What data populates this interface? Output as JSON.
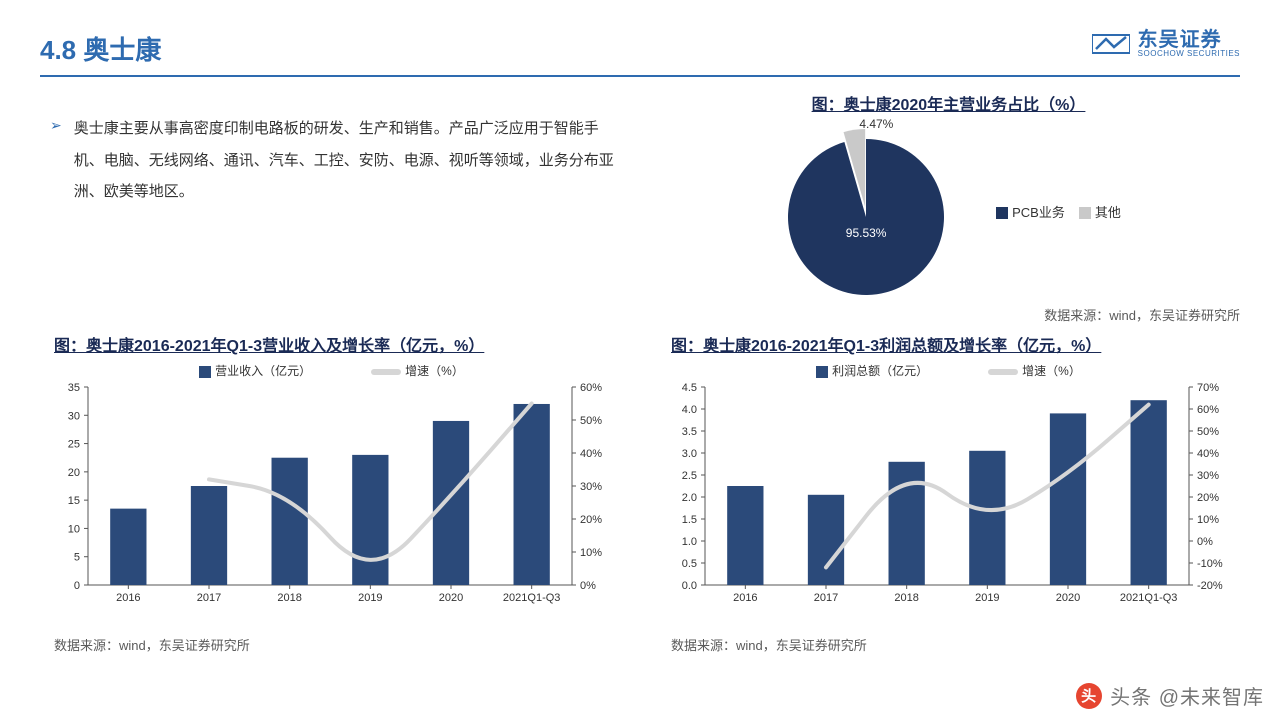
{
  "header": {
    "section_title": "4.8 奥士康",
    "logo_cn": "东吴证券",
    "logo_en": "SOOCHOW SECURITIES"
  },
  "description": {
    "bullet": "➢",
    "text": "奥士康主要从事高密度印制电路板的研发、生产和销售。产品广泛应用于智能手机、电脑、无线网络、通讯、汽车、工控、安防、电源、视听等领域，业务分布亚洲、欧美等地区。"
  },
  "pie_chart": {
    "title": "图：奥士康2020年主营业务占比（%）",
    "type": "pie",
    "slices": [
      {
        "label": "PCB业务",
        "value": 95.53,
        "color": "#1f355f",
        "display": "95.53%"
      },
      {
        "label": "其他",
        "value": 4.47,
        "color": "#c9c9c9",
        "display": "4.47%"
      }
    ],
    "legend_prefix": "■",
    "source": "数据来源：wind，东吴证券研究所"
  },
  "revenue_chart": {
    "title": "图：奥士康2016-2021年Q1-3营业收入及增长率（亿元，%）",
    "type": "bar_line",
    "categories": [
      "2016",
      "2017",
      "2018",
      "2019",
      "2020",
      "2021Q1-Q3"
    ],
    "bar_series_label": "营业收入（亿元）",
    "line_series_label": "增速（%）",
    "bar_values": [
      13.5,
      17.5,
      22.5,
      23.0,
      29.0,
      32.0
    ],
    "line_values": [
      null,
      32,
      28,
      1,
      27,
      55
    ],
    "bar_color": "#2b4a7a",
    "line_color": "#d6d6d6",
    "line_width": 4,
    "bar_width": 0.45,
    "y_left": {
      "min": 0,
      "max": 35,
      "step": 5
    },
    "y_right": {
      "min": 0,
      "max": 60,
      "step": 10,
      "suffix": "%"
    },
    "plot_bg": "#ffffff",
    "axis_color": "#555555",
    "tick_fontsize": 11,
    "label_fontsize": 12,
    "source": "数据来源：wind，东吴证券研究所"
  },
  "profit_chart": {
    "title": "图：奥士康2016-2021年Q1-3利润总额及增长率（亿元，%）",
    "type": "bar_line",
    "categories": [
      "2016",
      "2017",
      "2018",
      "2019",
      "2020",
      "2021Q1-Q3"
    ],
    "bar_series_label": "利润总额（亿元）",
    "line_series_label": "增速（%）",
    "bar_values": [
      2.25,
      2.05,
      2.8,
      3.05,
      3.9,
      4.2
    ],
    "line_values": [
      null,
      -12,
      35,
      8,
      30,
      62
    ],
    "bar_color": "#2b4a7a",
    "line_color": "#d6d6d6",
    "line_width": 4,
    "bar_width": 0.45,
    "y_left": {
      "min": 0,
      "max": 4.5,
      "step": 0.5
    },
    "y_right": {
      "min": -20,
      "max": 70,
      "step": 10,
      "suffix": "%"
    },
    "plot_bg": "#ffffff",
    "axis_color": "#555555",
    "tick_fontsize": 11,
    "label_fontsize": 12,
    "source": "数据来源：wind，东吴证券研究所"
  },
  "watermark": {
    "icon": "头",
    "text": "头条 @未来智库"
  }
}
